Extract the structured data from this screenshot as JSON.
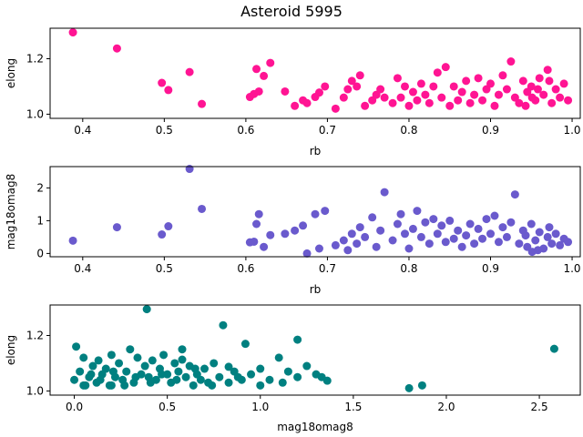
{
  "figure_title": "Asteroid 5995",
  "chart_data": [
    {
      "type": "scatter",
      "xlabel": "rb",
      "ylabel": "elong",
      "xlim": [
        0.36,
        1.01
      ],
      "ylim": [
        0.985,
        1.31
      ],
      "xticks": [
        0.4,
        0.5,
        0.6,
        0.7,
        0.8,
        0.9,
        1.0
      ],
      "xtick_labels": [
        "0.4",
        "0.5",
        "0.6",
        "0.7",
        "0.8",
        "0.9",
        "1.0"
      ],
      "yticks": [
        1.0,
        1.2
      ],
      "ytick_labels": [
        "1.0",
        "1.2"
      ],
      "color": "#ff1493",
      "points": [
        [
          0.388,
          1.295
        ],
        [
          0.442,
          1.237
        ],
        [
          0.497,
          1.113
        ],
        [
          0.505,
          1.087
        ],
        [
          0.531,
          1.152
        ],
        [
          0.546,
          1.037
        ],
        [
          0.605,
          1.062
        ],
        [
          0.61,
          1.073
        ],
        [
          0.613,
          1.163
        ],
        [
          0.616,
          1.082
        ],
        [
          0.622,
          1.138
        ],
        [
          0.63,
          1.185
        ],
        [
          0.648,
          1.082
        ],
        [
          0.66,
          1.03
        ],
        [
          0.67,
          1.05
        ],
        [
          0.675,
          1.04
        ],
        [
          0.685,
          1.062
        ],
        [
          0.69,
          1.078
        ],
        [
          0.697,
          1.1
        ],
        [
          0.71,
          1.02
        ],
        [
          0.72,
          1.06
        ],
        [
          0.725,
          1.09
        ],
        [
          0.73,
          1.12
        ],
        [
          0.736,
          1.1
        ],
        [
          0.74,
          1.14
        ],
        [
          0.746,
          1.03
        ],
        [
          0.755,
          1.05
        ],
        [
          0.76,
          1.07
        ],
        [
          0.765,
          1.09
        ],
        [
          0.77,
          1.06
        ],
        [
          0.78,
          1.04
        ],
        [
          0.786,
          1.13
        ],
        [
          0.79,
          1.06
        ],
        [
          0.795,
          1.1
        ],
        [
          0.8,
          1.03
        ],
        [
          0.805,
          1.08
        ],
        [
          0.81,
          1.05
        ],
        [
          0.815,
          1.11
        ],
        [
          0.82,
          1.07
        ],
        [
          0.825,
          1.04
        ],
        [
          0.83,
          1.1
        ],
        [
          0.835,
          1.15
        ],
        [
          0.84,
          1.06
        ],
        [
          0.845,
          1.17
        ],
        [
          0.85,
          1.03
        ],
        [
          0.855,
          1.1
        ],
        [
          0.86,
          1.05
        ],
        [
          0.865,
          1.08
        ],
        [
          0.87,
          1.12
        ],
        [
          0.875,
          1.04
        ],
        [
          0.88,
          1.07
        ],
        [
          0.885,
          1.13
        ],
        [
          0.89,
          1.05
        ],
        [
          0.895,
          1.09
        ],
        [
          0.9,
          1.11
        ],
        [
          0.905,
          1.03
        ],
        [
          0.91,
          1.07
        ],
        [
          0.915,
          1.14
        ],
        [
          0.92,
          1.09
        ],
        [
          0.925,
          1.19
        ],
        [
          0.93,
          1.06
        ],
        [
          0.935,
          1.04
        ],
        [
          0.94,
          1.12
        ],
        [
          0.945,
          1.08
        ],
        [
          0.95,
          1.1
        ],
        [
          0.955,
          1.05
        ],
        [
          0.96,
          1.13
        ],
        [
          0.965,
          1.07
        ],
        [
          0.97,
          1.16
        ],
        [
          0.975,
          1.04
        ],
        [
          0.98,
          1.09
        ],
        [
          0.985,
          1.06
        ],
        [
          0.99,
          1.11
        ],
        [
          0.995,
          1.05
        ],
        [
          0.943,
          1.03
        ],
        [
          0.958,
          1.09
        ],
        [
          0.972,
          1.12
        ],
        [
          0.951,
          1.06
        ]
      ]
    },
    {
      "type": "scatter",
      "xlabel": "rb",
      "ylabel": "mag18omag8",
      "xlim": [
        0.36,
        1.01
      ],
      "ylim": [
        -0.1,
        2.65
      ],
      "xticks": [
        0.4,
        0.5,
        0.6,
        0.7,
        0.8,
        0.9,
        1.0
      ],
      "xtick_labels": [
        "0.4",
        "0.5",
        "0.6",
        "0.7",
        "0.8",
        "0.9",
        "1.0"
      ],
      "yticks": [
        0,
        1,
        2
      ],
      "ytick_labels": [
        "0",
        "1",
        "2"
      ],
      "color": "#6a5acd",
      "points": [
        [
          0.388,
          0.39
        ],
        [
          0.442,
          0.8
        ],
        [
          0.497,
          0.58
        ],
        [
          0.505,
          0.83
        ],
        [
          0.531,
          2.58
        ],
        [
          0.546,
          1.36
        ],
        [
          0.605,
          0.34
        ],
        [
          0.61,
          0.36
        ],
        [
          0.613,
          0.9
        ],
        [
          0.616,
          1.2
        ],
        [
          0.622,
          0.2
        ],
        [
          0.63,
          0.56
        ],
        [
          0.648,
          0.6
        ],
        [
          0.66,
          0.7
        ],
        [
          0.67,
          0.85
        ],
        [
          0.675,
          0.0
        ],
        [
          0.685,
          1.2
        ],
        [
          0.69,
          0.15
        ],
        [
          0.697,
          1.3
        ],
        [
          0.71,
          0.25
        ],
        [
          0.72,
          0.4
        ],
        [
          0.725,
          0.1
        ],
        [
          0.73,
          0.6
        ],
        [
          0.736,
          0.3
        ],
        [
          0.74,
          0.8
        ],
        [
          0.746,
          0.5
        ],
        [
          0.755,
          1.1
        ],
        [
          0.76,
          0.2
        ],
        [
          0.765,
          0.7
        ],
        [
          0.77,
          1.87
        ],
        [
          0.78,
          0.4
        ],
        [
          0.786,
          0.9
        ],
        [
          0.79,
          1.2
        ],
        [
          0.795,
          0.6
        ],
        [
          0.8,
          0.15
        ],
        [
          0.805,
          0.75
        ],
        [
          0.81,
          1.3
        ],
        [
          0.815,
          0.5
        ],
        [
          0.82,
          0.95
        ],
        [
          0.825,
          0.3
        ],
        [
          0.83,
          1.05
        ],
        [
          0.835,
          0.6
        ],
        [
          0.84,
          0.85
        ],
        [
          0.845,
          0.35
        ],
        [
          0.85,
          1.0
        ],
        [
          0.855,
          0.45
        ],
        [
          0.86,
          0.7
        ],
        [
          0.865,
          0.2
        ],
        [
          0.87,
          0.55
        ],
        [
          0.875,
          0.9
        ],
        [
          0.88,
          0.3
        ],
        [
          0.885,
          0.75
        ],
        [
          0.89,
          0.45
        ],
        [
          0.895,
          1.05
        ],
        [
          0.9,
          0.6
        ],
        [
          0.905,
          1.15
        ],
        [
          0.91,
          0.35
        ],
        [
          0.915,
          0.8
        ],
        [
          0.92,
          0.5
        ],
        [
          0.925,
          0.95
        ],
        [
          0.93,
          1.8
        ],
        [
          0.935,
          0.3
        ],
        [
          0.94,
          0.7
        ],
        [
          0.945,
          0.2
        ],
        [
          0.95,
          0.9
        ],
        [
          0.955,
          0.4
        ],
        [
          0.96,
          0.65
        ],
        [
          0.965,
          0.15
        ],
        [
          0.97,
          0.5
        ],
        [
          0.975,
          0.3
        ],
        [
          0.98,
          0.6
        ],
        [
          0.985,
          0.25
        ],
        [
          0.99,
          0.45
        ],
        [
          0.995,
          0.35
        ],
        [
          0.943,
          0.55
        ],
        [
          0.958,
          0.1
        ],
        [
          0.972,
          0.8
        ],
        [
          0.951,
          0.05
        ]
      ]
    },
    {
      "type": "scatter",
      "xlabel": "mag18omag8",
      "ylabel": "elong",
      "xlim": [
        -0.13,
        2.72
      ],
      "ylim": [
        0.985,
        1.31
      ],
      "xticks": [
        0.0,
        0.5,
        1.0,
        1.5,
        2.0,
        2.5
      ],
      "xtick_labels": [
        "0.0",
        "0.5",
        "1.0",
        "1.5",
        "2.0",
        "2.5"
      ],
      "yticks": [
        1.0,
        1.2
      ],
      "ytick_labels": [
        "1.0",
        "1.2"
      ],
      "color": "#008080",
      "points": [
        [
          0.0,
          1.04
        ],
        [
          0.01,
          1.16
        ],
        [
          0.03,
          1.07
        ],
        [
          0.05,
          1.12
        ],
        [
          0.06,
          1.02
        ],
        [
          0.08,
          1.05
        ],
        [
          0.1,
          1.09
        ],
        [
          0.12,
          1.03
        ],
        [
          0.13,
          1.11
        ],
        [
          0.15,
          1.06
        ],
        [
          0.17,
          1.08
        ],
        [
          0.19,
          1.02
        ],
        [
          0.2,
          1.13
        ],
        [
          0.22,
          1.05
        ],
        [
          0.24,
          1.1
        ],
        [
          0.26,
          1.04
        ],
        [
          0.28,
          1.07
        ],
        [
          0.3,
          1.15
        ],
        [
          0.32,
          1.03
        ],
        [
          0.34,
          1.12
        ],
        [
          0.36,
          1.06
        ],
        [
          0.38,
          1.09
        ],
        [
          0.39,
          1.295
        ],
        [
          0.4,
          1.05
        ],
        [
          0.42,
          1.11
        ],
        [
          0.44,
          1.04
        ],
        [
          0.46,
          1.08
        ],
        [
          0.48,
          1.13
        ],
        [
          0.5,
          1.06
        ],
        [
          0.52,
          1.03
        ],
        [
          0.54,
          1.1
        ],
        [
          0.56,
          1.07
        ],
        [
          0.58,
          1.15
        ],
        [
          0.6,
          1.05
        ],
        [
          0.62,
          1.09
        ],
        [
          0.64,
          1.02
        ],
        [
          0.66,
          1.06
        ],
        [
          0.68,
          1.04
        ],
        [
          0.7,
          1.08
        ],
        [
          0.72,
          1.03
        ],
        [
          0.75,
          1.1
        ],
        [
          0.78,
          1.05
        ],
        [
          0.8,
          1.237
        ],
        [
          0.83,
          1.03
        ],
        [
          0.86,
          1.07
        ],
        [
          0.9,
          1.04
        ],
        [
          0.92,
          1.17
        ],
        [
          0.95,
          1.06
        ],
        [
          1.0,
          1.08
        ],
        [
          1.05,
          1.04
        ],
        [
          1.1,
          1.12
        ],
        [
          1.15,
          1.07
        ],
        [
          1.2,
          1.05
        ],
        [
          1.25,
          1.09
        ],
        [
          1.3,
          1.06
        ],
        [
          1.36,
          1.037
        ],
        [
          0.58,
          1.113
        ],
        [
          0.83,
          1.087
        ],
        [
          1.2,
          1.185
        ],
        [
          1.8,
          1.01
        ],
        [
          1.87,
          1.02
        ],
        [
          2.58,
          1.152
        ],
        [
          0.05,
          1.02
        ],
        [
          0.09,
          1.06
        ],
        [
          0.14,
          1.04
        ],
        [
          0.21,
          1.07
        ],
        [
          0.27,
          1.02
        ],
        [
          0.33,
          1.05
        ],
        [
          0.41,
          1.03
        ],
        [
          0.47,
          1.06
        ],
        [
          0.55,
          1.04
        ],
        [
          0.65,
          1.08
        ],
        [
          0.74,
          1.02
        ],
        [
          0.88,
          1.05
        ],
        [
          1.0,
          1.02
        ],
        [
          1.12,
          1.03
        ],
        [
          1.33,
          1.05
        ],
        [
          0.2,
          1.02
        ]
      ]
    }
  ]
}
